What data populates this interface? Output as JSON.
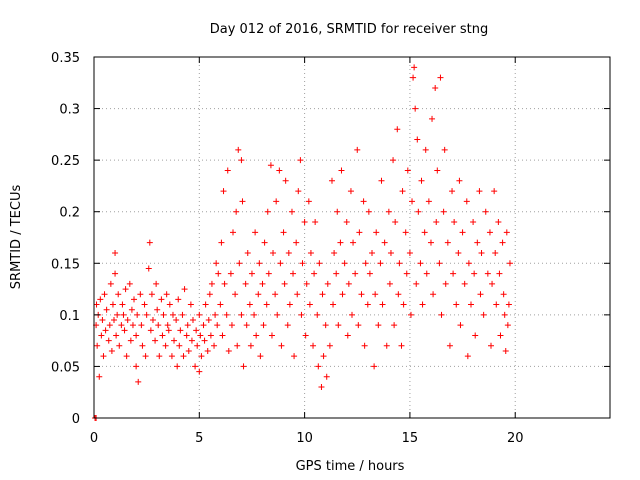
{
  "chart_data": {
    "type": "scatter",
    "title": "Day 012 of 2016, SRMTID for receiver stng",
    "xlabel": "GPS time / hours",
    "ylabel": "SRMTID / TECUs",
    "xlim": [
      0,
      24.5
    ],
    "ylim": [
      0,
      0.35
    ],
    "xticks": [
      0,
      5,
      10,
      15,
      20
    ],
    "xtick_labels": [
      "0",
      "5",
      "10",
      "15",
      "20"
    ],
    "yticks": [
      0,
      0.05,
      0.1,
      0.15,
      0.2,
      0.25,
      0.3,
      0.35
    ],
    "ytick_labels": [
      "0",
      "0.05",
      "0.1",
      "0.15",
      "0.2",
      "0.25",
      "0.3",
      "0.35"
    ],
    "grid": true,
    "marker": "+",
    "color": "#ff0000",
    "series": [
      {
        "name": "SRMTID",
        "points": [
          [
            0.05,
            0.0
          ],
          [
            0.1,
            0.0
          ],
          [
            0.1,
            0.09
          ],
          [
            0.12,
            0.11
          ],
          [
            0.15,
            0.07
          ],
          [
            0.2,
            0.1
          ],
          [
            0.25,
            0.04
          ],
          [
            0.3,
            0.115
          ],
          [
            0.35,
            0.08
          ],
          [
            0.4,
            0.095
          ],
          [
            0.45,
            0.06
          ],
          [
            0.5,
            0.12
          ],
          [
            0.55,
            0.085
          ],
          [
            0.6,
            0.105
          ],
          [
            0.7,
            0.075
          ],
          [
            0.75,
            0.09
          ],
          [
            0.8,
            0.13
          ],
          [
            0.85,
            0.065
          ],
          [
            0.9,
            0.11
          ],
          [
            0.95,
            0.095
          ],
          [
            1.0,
            0.16
          ],
          [
            1.0,
            0.14
          ],
          [
            1.05,
            0.08
          ],
          [
            1.1,
            0.1
          ],
          [
            1.15,
            0.12
          ],
          [
            1.2,
            0.07
          ],
          [
            1.3,
            0.09
          ],
          [
            1.35,
            0.11
          ],
          [
            1.4,
            0.1
          ],
          [
            1.45,
            0.085
          ],
          [
            1.5,
            0.125
          ],
          [
            1.55,
            0.06
          ],
          [
            1.6,
            0.095
          ],
          [
            1.7,
            0.13
          ],
          [
            1.75,
            0.075
          ],
          [
            1.8,
            0.105
          ],
          [
            1.85,
            0.09
          ],
          [
            1.9,
            0.115
          ],
          [
            2.0,
            0.05
          ],
          [
            2.0,
            0.08
          ],
          [
            2.05,
            0.1
          ],
          [
            2.1,
            0.035
          ],
          [
            2.2,
            0.12
          ],
          [
            2.25,
            0.09
          ],
          [
            2.3,
            0.07
          ],
          [
            2.4,
            0.11
          ],
          [
            2.45,
            0.06
          ],
          [
            2.5,
            0.1
          ],
          [
            2.6,
            0.145
          ],
          [
            2.65,
            0.17
          ],
          [
            2.7,
            0.085
          ],
          [
            2.75,
            0.12
          ],
          [
            2.8,
            0.095
          ],
          [
            2.9,
            0.075
          ],
          [
            2.95,
            0.13
          ],
          [
            3.0,
            0.105
          ],
          [
            3.05,
            0.09
          ],
          [
            3.1,
            0.06
          ],
          [
            3.2,
            0.115
          ],
          [
            3.25,
            0.08
          ],
          [
            3.3,
            0.1
          ],
          [
            3.4,
            0.07
          ],
          [
            3.45,
            0.12
          ],
          [
            3.5,
            0.09
          ],
          [
            3.55,
            0.085
          ],
          [
            3.6,
            0.11
          ],
          [
            3.7,
            0.06
          ],
          [
            3.75,
            0.1
          ],
          [
            3.8,
            0.075
          ],
          [
            3.9,
            0.095
          ],
          [
            3.95,
            0.05
          ],
          [
            4.0,
            0.115
          ],
          [
            4.05,
            0.07
          ],
          [
            4.1,
            0.085
          ],
          [
            4.2,
            0.1
          ],
          [
            4.25,
            0.06
          ],
          [
            4.3,
            0.125
          ],
          [
            4.4,
            0.08
          ],
          [
            4.45,
            0.09
          ],
          [
            4.5,
            0.065
          ],
          [
            4.6,
            0.11
          ],
          [
            4.65,
            0.075
          ],
          [
            4.7,
            0.095
          ],
          [
            4.8,
            0.05
          ],
          [
            4.85,
            0.085
          ],
          [
            4.9,
            0.07
          ],
          [
            5.0,
            0.1
          ],
          [
            5.0,
            0.045
          ],
          [
            5.05,
            0.08
          ],
          [
            5.1,
            0.06
          ],
          [
            5.2,
            0.09
          ],
          [
            5.25,
            0.075
          ],
          [
            5.3,
            0.11
          ],
          [
            5.4,
            0.065
          ],
          [
            5.45,
            0.095
          ],
          [
            5.5,
            0.12
          ],
          [
            5.55,
            0.08
          ],
          [
            5.6,
            0.13
          ],
          [
            5.7,
            0.07
          ],
          [
            5.75,
            0.1
          ],
          [
            5.8,
            0.15
          ],
          [
            5.85,
            0.09
          ],
          [
            5.9,
            0.14
          ],
          [
            6.0,
            0.11
          ],
          [
            6.05,
            0.17
          ],
          [
            6.1,
            0.08
          ],
          [
            6.15,
            0.22
          ],
          [
            6.2,
            0.13
          ],
          [
            6.3,
            0.1
          ],
          [
            6.35,
            0.24
          ],
          [
            6.4,
            0.065
          ],
          [
            6.5,
            0.14
          ],
          [
            6.55,
            0.09
          ],
          [
            6.6,
            0.18
          ],
          [
            6.7,
            0.12
          ],
          [
            6.75,
            0.2
          ],
          [
            6.8,
            0.07
          ],
          [
            6.85,
            0.26
          ],
          [
            6.9,
            0.15
          ],
          [
            7.0,
            0.25
          ],
          [
            7.0,
            0.1
          ],
          [
            7.05,
            0.21
          ],
          [
            7.1,
            0.05
          ],
          [
            7.2,
            0.13
          ],
          [
            7.25,
            0.09
          ],
          [
            7.3,
            0.16
          ],
          [
            7.4,
            0.11
          ],
          [
            7.45,
            0.07
          ],
          [
            7.5,
            0.14
          ],
          [
            7.6,
            0.1
          ],
          [
            7.65,
            0.18
          ],
          [
            7.7,
            0.08
          ],
          [
            7.8,
            0.12
          ],
          [
            7.85,
            0.15
          ],
          [
            7.9,
            0.06
          ],
          [
            8.0,
            0.13
          ],
          [
            8.05,
            0.09
          ],
          [
            8.1,
            0.17
          ],
          [
            8.2,
            0.11
          ],
          [
            8.25,
            0.2
          ],
          [
            8.3,
            0.14
          ],
          [
            8.4,
            0.245
          ],
          [
            8.45,
            0.08
          ],
          [
            8.5,
            0.16
          ],
          [
            8.6,
            0.12
          ],
          [
            8.65,
            0.21
          ],
          [
            8.7,
            0.1
          ],
          [
            8.8,
            0.24
          ],
          [
            8.85,
            0.15
          ],
          [
            8.9,
            0.07
          ],
          [
            9.0,
            0.18
          ],
          [
            9.05,
            0.13
          ],
          [
            9.1,
            0.23
          ],
          [
            9.2,
            0.09
          ],
          [
            9.25,
            0.16
          ],
          [
            9.3,
            0.11
          ],
          [
            9.4,
            0.2
          ],
          [
            9.45,
            0.14
          ],
          [
            9.5,
            0.06
          ],
          [
            9.6,
            0.17
          ],
          [
            9.65,
            0.12
          ],
          [
            9.7,
            0.22
          ],
          [
            9.8,
            0.25
          ],
          [
            9.85,
            0.1
          ],
          [
            9.9,
            0.15
          ],
          [
            10.0,
            0.19
          ],
          [
            10.05,
            0.08
          ],
          [
            10.1,
            0.13
          ],
          [
            10.2,
            0.21
          ],
          [
            10.25,
            0.11
          ],
          [
            10.3,
            0.16
          ],
          [
            10.4,
            0.07
          ],
          [
            10.45,
            0.14
          ],
          [
            10.5,
            0.19
          ],
          [
            10.6,
            0.1
          ],
          [
            10.65,
            0.05
          ],
          [
            10.7,
            0.15
          ],
          [
            10.8,
            0.03
          ],
          [
            10.85,
            0.12
          ],
          [
            10.9,
            0.06
          ],
          [
            11.0,
            0.09
          ],
          [
            11.05,
            0.04
          ],
          [
            11.1,
            0.13
          ],
          [
            11.2,
            0.07
          ],
          [
            11.3,
            0.23
          ],
          [
            11.35,
            0.11
          ],
          [
            11.4,
            0.16
          ],
          [
            11.5,
            0.14
          ],
          [
            11.55,
            0.2
          ],
          [
            11.6,
            0.09
          ],
          [
            11.7,
            0.17
          ],
          [
            11.75,
            0.24
          ],
          [
            11.8,
            0.12
          ],
          [
            11.9,
            0.15
          ],
          [
            12.0,
            0.19
          ],
          [
            12.05,
            0.08
          ],
          [
            12.1,
            0.13
          ],
          [
            12.2,
            0.22
          ],
          [
            12.25,
            0.1
          ],
          [
            12.3,
            0.17
          ],
          [
            12.4,
            0.14
          ],
          [
            12.5,
            0.26
          ],
          [
            12.55,
            0.09
          ],
          [
            12.6,
            0.18
          ],
          [
            12.7,
            0.12
          ],
          [
            12.8,
            0.21
          ],
          [
            12.85,
            0.07
          ],
          [
            12.9,
            0.15
          ],
          [
            13.0,
            0.11
          ],
          [
            13.05,
            0.2
          ],
          [
            13.1,
            0.14
          ],
          [
            13.2,
            0.16
          ],
          [
            13.3,
            0.05
          ],
          [
            13.35,
            0.12
          ],
          [
            13.4,
            0.18
          ],
          [
            13.5,
            0.09
          ],
          [
            13.6,
            0.15
          ],
          [
            13.65,
            0.23
          ],
          [
            13.7,
            0.11
          ],
          [
            13.8,
            0.17
          ],
          [
            13.9,
            0.07
          ],
          [
            14.0,
            0.2
          ],
          [
            14.05,
            0.13
          ],
          [
            14.1,
            0.16
          ],
          [
            14.2,
            0.25
          ],
          [
            14.25,
            0.09
          ],
          [
            14.3,
            0.19
          ],
          [
            14.4,
            0.28
          ],
          [
            14.45,
            0.12
          ],
          [
            14.5,
            0.15
          ],
          [
            14.6,
            0.07
          ],
          [
            14.65,
            0.22
          ],
          [
            14.7,
            0.11
          ],
          [
            14.8,
            0.18
          ],
          [
            14.85,
            0.14
          ],
          [
            14.9,
            0.24
          ],
          [
            15.0,
            0.16
          ],
          [
            15.05,
            0.1
          ],
          [
            15.1,
            0.21
          ],
          [
            15.15,
            0.33
          ],
          [
            15.2,
            0.34
          ],
          [
            15.25,
            0.3
          ],
          [
            15.3,
            0.13
          ],
          [
            15.35,
            0.27
          ],
          [
            15.4,
            0.2
          ],
          [
            15.5,
            0.15
          ],
          [
            15.55,
            0.23
          ],
          [
            15.6,
            0.11
          ],
          [
            15.7,
            0.18
          ],
          [
            15.75,
            0.26
          ],
          [
            15.8,
            0.14
          ],
          [
            15.9,
            0.21
          ],
          [
            16.0,
            0.17
          ],
          [
            16.05,
            0.29
          ],
          [
            16.1,
            0.12
          ],
          [
            16.2,
            0.32
          ],
          [
            16.25,
            0.19
          ],
          [
            16.3,
            0.24
          ],
          [
            16.4,
            0.15
          ],
          [
            16.45,
            0.33
          ],
          [
            16.5,
            0.1
          ],
          [
            16.6,
            0.2
          ],
          [
            16.65,
            0.26
          ],
          [
            16.7,
            0.13
          ],
          [
            16.8,
            0.17
          ],
          [
            16.9,
            0.07
          ],
          [
            17.0,
            0.22
          ],
          [
            17.05,
            0.14
          ],
          [
            17.1,
            0.19
          ],
          [
            17.2,
            0.11
          ],
          [
            17.3,
            0.16
          ],
          [
            17.35,
            0.23
          ],
          [
            17.4,
            0.09
          ],
          [
            17.5,
            0.18
          ],
          [
            17.6,
            0.13
          ],
          [
            17.7,
            0.21
          ],
          [
            17.75,
            0.06
          ],
          [
            17.8,
            0.15
          ],
          [
            17.9,
            0.11
          ],
          [
            18.0,
            0.19
          ],
          [
            18.05,
            0.14
          ],
          [
            18.1,
            0.08
          ],
          [
            18.2,
            0.17
          ],
          [
            18.3,
            0.22
          ],
          [
            18.35,
            0.12
          ],
          [
            18.4,
            0.16
          ],
          [
            18.5,
            0.1
          ],
          [
            18.6,
            0.2
          ],
          [
            18.7,
            0.14
          ],
          [
            18.8,
            0.18
          ],
          [
            18.85,
            0.07
          ],
          [
            18.9,
            0.13
          ],
          [
            19.0,
            0.22
          ],
          [
            19.05,
            0.16
          ],
          [
            19.1,
            0.11
          ],
          [
            19.2,
            0.19
          ],
          [
            19.25,
            0.14
          ],
          [
            19.3,
            0.08
          ],
          [
            19.4,
            0.17
          ],
          [
            19.45,
            0.12
          ],
          [
            19.5,
            0.1
          ],
          [
            19.55,
            0.065
          ],
          [
            19.6,
            0.18
          ],
          [
            19.65,
            0.09
          ],
          [
            19.7,
            0.11
          ],
          [
            19.75,
            0.15
          ]
        ]
      }
    ]
  }
}
